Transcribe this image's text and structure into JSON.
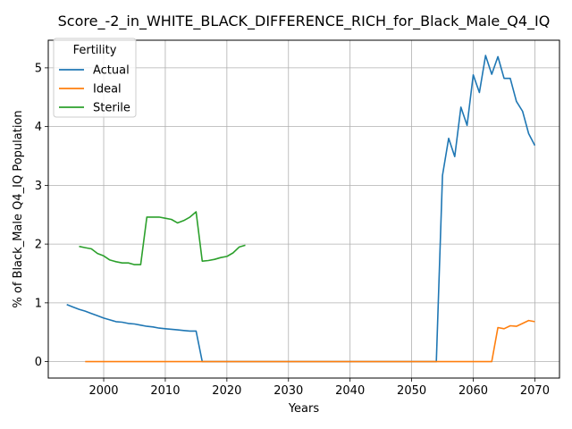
{
  "chart_data": {
    "type": "line",
    "title": "Score_-2_in_WHITE_BLACK_DIFFERENCE_RICH_for_Black_Male_Q4_IQ",
    "xlabel": "Years",
    "ylabel": "% of Black_Male Q4_IQ Population",
    "xlim": [
      1991,
      2074
    ],
    "ylim": [
      -0.28,
      5.47
    ],
    "xticks": [
      2000,
      2010,
      2020,
      2030,
      2040,
      2050,
      2060,
      2070
    ],
    "yticks": [
      0,
      1,
      2,
      3,
      4,
      5
    ],
    "grid": true,
    "legend": {
      "title": "Fertility",
      "position": "top-left"
    },
    "series": [
      {
        "name": "Actual",
        "color": "#1f77b4",
        "points": [
          [
            1994,
            0.97
          ],
          [
            1995,
            0.93
          ],
          [
            1996,
            0.89
          ],
          [
            1997,
            0.86
          ],
          [
            1998,
            0.82
          ],
          [
            1999,
            0.78
          ],
          [
            2000,
            0.74
          ],
          [
            2001,
            0.71
          ],
          [
            2002,
            0.68
          ],
          [
            2003,
            0.67
          ],
          [
            2004,
            0.65
          ],
          [
            2005,
            0.64
          ],
          [
            2006,
            0.62
          ],
          [
            2007,
            0.6
          ],
          [
            2008,
            0.59
          ],
          [
            2009,
            0.57
          ],
          [
            2010,
            0.56
          ],
          [
            2011,
            0.55
          ],
          [
            2012,
            0.54
          ],
          [
            2013,
            0.53
          ],
          [
            2014,
            0.52
          ],
          [
            2015,
            0.52
          ],
          [
            2016,
            0.0
          ],
          [
            2017,
            0.0
          ],
          [
            2020,
            0.0
          ],
          [
            2030,
            0.0
          ],
          [
            2040,
            0.0
          ],
          [
            2050,
            0.0
          ],
          [
            2054,
            0.0
          ],
          [
            2055,
            3.17
          ],
          [
            2056,
            3.8
          ],
          [
            2057,
            3.49
          ],
          [
            2058,
            4.33
          ],
          [
            2059,
            4.02
          ],
          [
            2060,
            4.88
          ],
          [
            2061,
            4.58
          ],
          [
            2062,
            5.21
          ],
          [
            2063,
            4.89
          ],
          [
            2064,
            5.19
          ],
          [
            2065,
            4.82
          ],
          [
            2066,
            4.82
          ],
          [
            2067,
            4.43
          ],
          [
            2068,
            4.26
          ],
          [
            2069,
            3.88
          ],
          [
            2070,
            3.68
          ]
        ]
      },
      {
        "name": "Ideal",
        "color": "#ff7f0e",
        "points": [
          [
            1997,
            0.0
          ],
          [
            2000,
            0.0
          ],
          [
            2010,
            0.0
          ],
          [
            2020,
            0.0
          ],
          [
            2030,
            0.0
          ],
          [
            2040,
            0.0
          ],
          [
            2050,
            0.0
          ],
          [
            2060,
            0.0
          ],
          [
            2063,
            0.0
          ],
          [
            2064,
            0.58
          ],
          [
            2065,
            0.56
          ],
          [
            2066,
            0.61
          ],
          [
            2067,
            0.6
          ],
          [
            2068,
            0.65
          ],
          [
            2069,
            0.7
          ],
          [
            2070,
            0.68
          ]
        ]
      },
      {
        "name": "Sterile",
        "color": "#2ca02c",
        "points": [
          [
            1996,
            1.96
          ],
          [
            1997,
            1.94
          ],
          [
            1998,
            1.92
          ],
          [
            1999,
            1.84
          ],
          [
            2000,
            1.8
          ],
          [
            2001,
            1.73
          ],
          [
            2002,
            1.7
          ],
          [
            2003,
            1.68
          ],
          [
            2004,
            1.68
          ],
          [
            2005,
            1.65
          ],
          [
            2006,
            1.65
          ],
          [
            2007,
            2.46
          ],
          [
            2008,
            2.46
          ],
          [
            2009,
            2.46
          ],
          [
            2010,
            2.44
          ],
          [
            2011,
            2.42
          ],
          [
            2012,
            2.36
          ],
          [
            2013,
            2.4
          ],
          [
            2014,
            2.46
          ],
          [
            2015,
            2.55
          ],
          [
            2016,
            1.71
          ],
          [
            2017,
            1.72
          ],
          [
            2018,
            1.74
          ],
          [
            2019,
            1.77
          ],
          [
            2020,
            1.79
          ],
          [
            2021,
            1.85
          ],
          [
            2022,
            1.95
          ],
          [
            2023,
            1.98
          ]
        ]
      }
    ]
  }
}
